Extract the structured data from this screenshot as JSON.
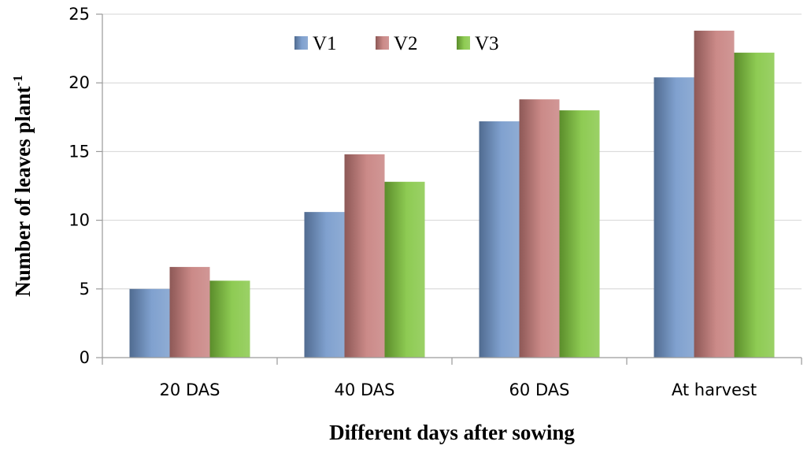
{
  "chart_data": {
    "type": "bar",
    "title": "",
    "xlabel": "Different days after sowing",
    "ylabel": "Number of leaves plant",
    "ylabel_superscript": "-1",
    "categories": [
      "20 DAS",
      "40 DAS",
      "60 DAS",
      "At harvest"
    ],
    "series": [
      {
        "name": "V1",
        "values": [
          5.0,
          10.6,
          17.2,
          20.4
        ],
        "color": "#6F94C8"
      },
      {
        "name": "V2",
        "values": [
          6.6,
          14.8,
          18.8,
          23.8
        ],
        "color": "#C47A78"
      },
      {
        "name": "V3",
        "values": [
          5.6,
          12.8,
          18.0,
          22.2
        ],
        "color": "#7FC43C"
      }
    ],
    "ylim": [
      0,
      25
    ],
    "yticks": [
      0,
      5,
      10,
      15,
      20,
      25
    ],
    "grid": true,
    "legend_position": "top-center"
  }
}
